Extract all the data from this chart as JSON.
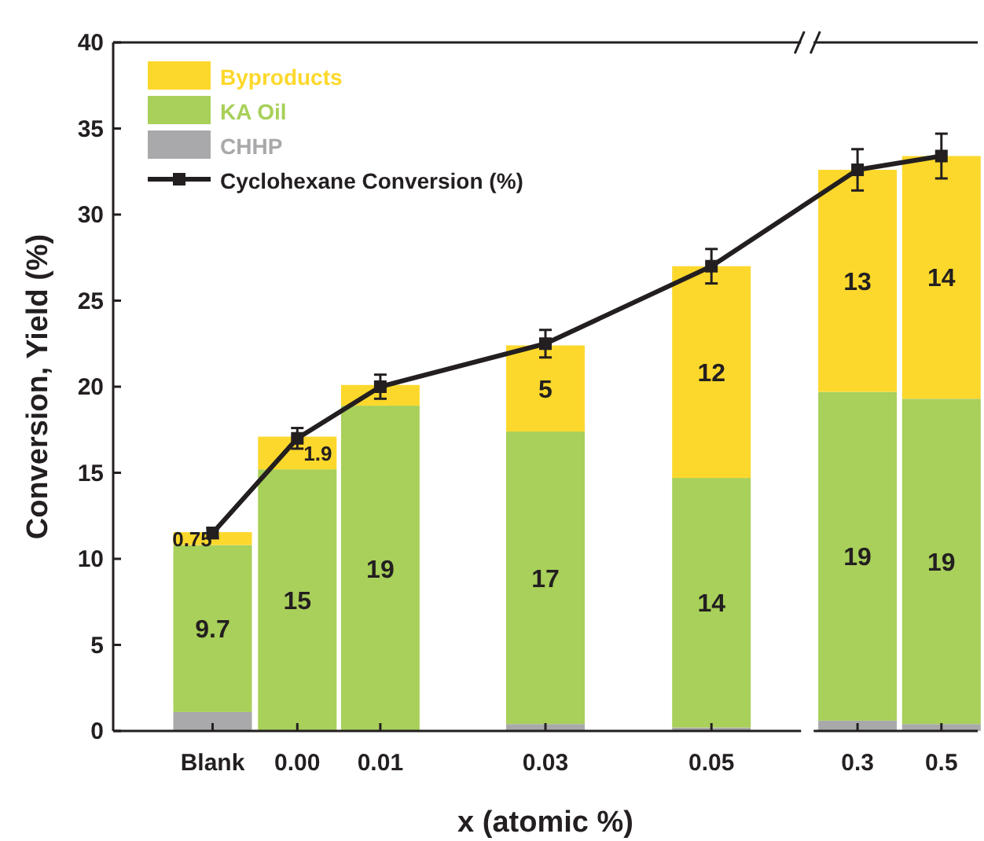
{
  "chart_data": {
    "type": "bar",
    "stacked": true,
    "xlabel": "x (atomic %)",
    "ylabel": "Conversion, Yield (%)",
    "categories": [
      "Blank",
      "0.00",
      "0.01",
      "0.03",
      "0.05",
      "0.3",
      "0.5"
    ],
    "ylim": [
      0,
      40
    ],
    "yticks": [
      0,
      5,
      10,
      15,
      20,
      25,
      30,
      35,
      40
    ],
    "legend": "top left",
    "marker": "square",
    "line_style": "solid",
    "series": [
      {
        "name": "CHHP",
        "color": "#a9a9ab",
        "values": [
          1.1,
          0,
          0,
          0.4,
          0.2,
          0.6,
          0.4
        ]
      },
      {
        "name": "KA Oil",
        "color": "#a8d05a",
        "values": [
          9.7,
          15.2,
          18.9,
          17.0,
          14.5,
          19.1,
          18.9
        ],
        "value_labels": [
          "9.7",
          "15",
          "19",
          "17",
          "14",
          "19",
          "19"
        ]
      },
      {
        "name": "Byproducts",
        "color": "#fdd82c",
        "values": [
          0.75,
          1.9,
          1.2,
          5.0,
          12.3,
          12.9,
          14.1
        ],
        "value_labels": [
          "0.75",
          "1.9",
          null,
          "5",
          "12",
          "13",
          "14"
        ]
      },
      {
        "name": "Cyclohexane Conversion (%)",
        "type": "line",
        "color": "#231f20",
        "values": [
          11.5,
          17.0,
          20.0,
          22.5,
          27.0,
          32.6,
          33.4
        ],
        "errors": [
          0.3,
          0.6,
          0.7,
          0.8,
          1.0,
          1.2,
          1.3
        ]
      }
    ]
  }
}
